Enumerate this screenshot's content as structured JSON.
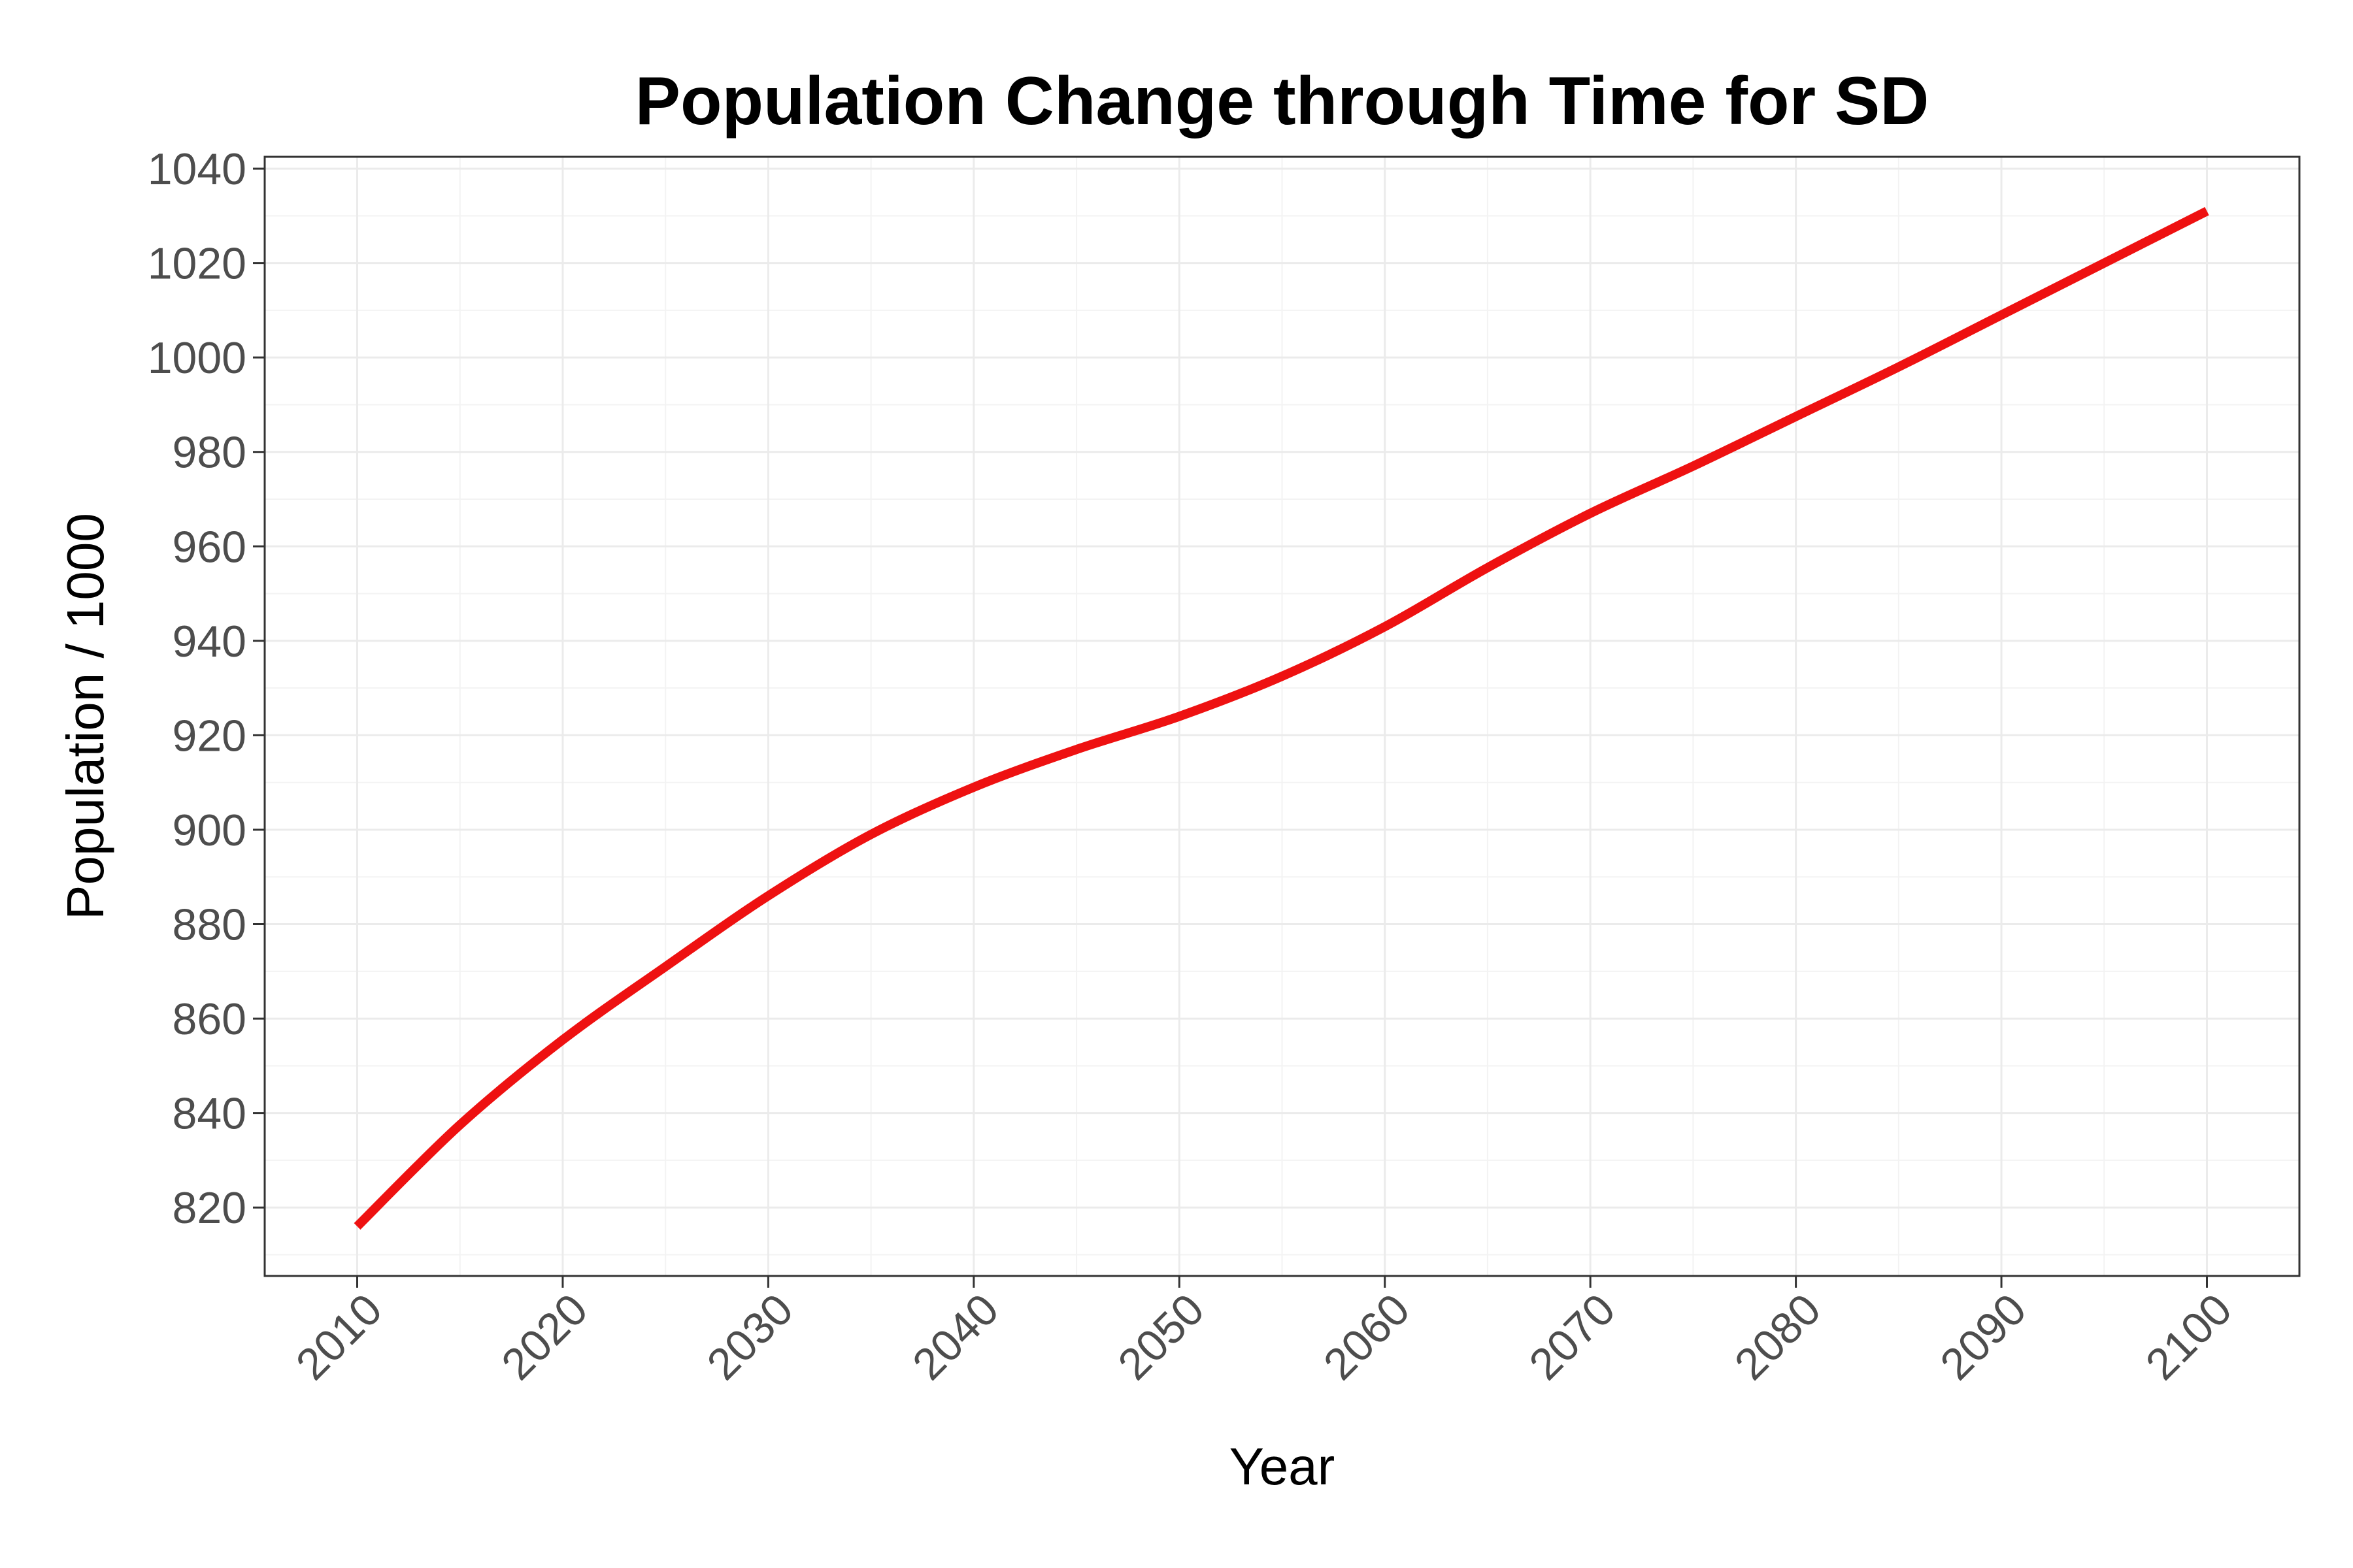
{
  "chart_data": {
    "type": "line",
    "title": "Population Change through Time for SD",
    "xlabel": "Year",
    "ylabel": "Population / 1000",
    "xlim": [
      2005.5,
      2104.5
    ],
    "ylim": [
      805.5,
      1042.5
    ],
    "x_ticks": [
      2010,
      2020,
      2030,
      2040,
      2050,
      2060,
      2070,
      2080,
      2090,
      2100
    ],
    "y_ticks": [
      820,
      840,
      860,
      880,
      900,
      920,
      940,
      960,
      980,
      1000,
      1020,
      1040
    ],
    "x_tick_labels": [
      "2010",
      "2020",
      "2030",
      "2040",
      "2050",
      "2060",
      "2070",
      "2080",
      "2090",
      "2100"
    ],
    "y_tick_labels": [
      "820",
      "840",
      "860",
      "880",
      "900",
      "920",
      "940",
      "960",
      "980",
      "1000",
      "1020",
      "1040"
    ],
    "grid": true,
    "legend": "none",
    "line_color": "#ee1111",
    "series": [
      {
        "x": [
          2010,
          2015,
          2020,
          2025,
          2030,
          2035,
          2040,
          2045,
          2050,
          2055,
          2060,
          2065,
          2070,
          2075,
          2080,
          2085,
          2090,
          2095,
          2100
        ],
        "values": [
          816,
          837.5,
          855.5,
          871,
          886,
          899,
          909,
          917,
          924,
          932.5,
          943,
          955.5,
          967,
          977,
          987.5,
          998,
          1009,
          1020,
          1031
        ]
      }
    ]
  }
}
